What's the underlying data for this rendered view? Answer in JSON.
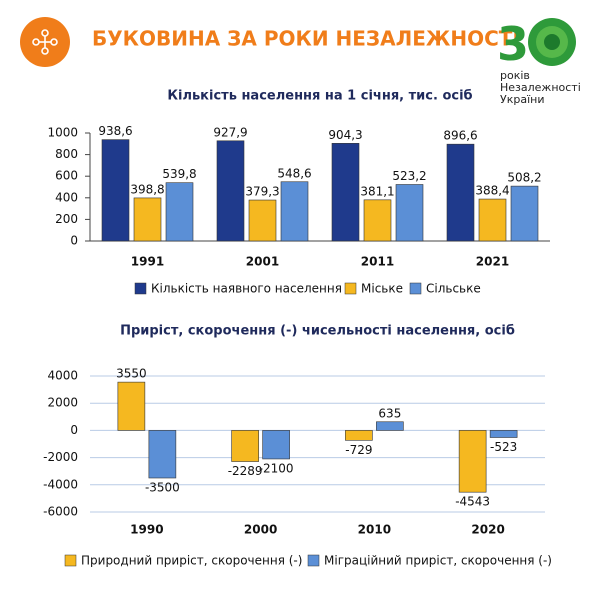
{
  "header": {
    "title": "БУКОВИНА ЗА РОКИ НЕЗАЛЕЖНОСТІ",
    "logo_digit": "3",
    "logo_lines": [
      "років",
      "Незалежності",
      "України"
    ]
  },
  "chart_data": [
    {
      "type": "bar",
      "title": "Кількість населення на 1 січня, тис. осіб",
      "categories": [
        "1991",
        "2001",
        "2011",
        "2021"
      ],
      "series": [
        {
          "name": "Кількість наявного населення",
          "color": "#1f3a8c",
          "values": [
            938.6,
            927.9,
            904.3,
            896.6
          ],
          "value_labels": [
            "938,6",
            "927,9",
            "904,3",
            "896,6"
          ]
        },
        {
          "name": "Міське",
          "color": "#f5b820",
          "values": [
            398.8,
            379.3,
            381.1,
            388.4
          ],
          "value_labels": [
            "398,8",
            "379,3",
            "381,1",
            "388,4"
          ]
        },
        {
          "name": "Сільське",
          "color": "#5b8fd6",
          "values": [
            539.8,
            548.6,
            523.2,
            508.2
          ],
          "value_labels": [
            "539,8",
            "548,6",
            "523,2",
            "508,2"
          ]
        }
      ],
      "ylim": [
        0,
        1000
      ],
      "yticks": [
        0,
        200,
        400,
        600,
        800,
        1000
      ],
      "grid": false,
      "legend": "bottom"
    },
    {
      "type": "bar",
      "title": "Приріст, скорочення (-) чисельності населення, осіб",
      "categories": [
        "1990",
        "2000",
        "2010",
        "2020"
      ],
      "series": [
        {
          "name": "Природний приріст, скорочення (-)",
          "color": "#f5b820",
          "values": [
            3550,
            -2289,
            -729,
            -4543
          ]
        },
        {
          "name": "Міграційний приріст, скорочення (-)",
          "color": "#5b8fd6",
          "values": [
            -3500,
            -2100,
            635,
            -523
          ]
        }
      ],
      "ylim": [
        -6000,
        4000
      ],
      "yticks": [
        -6000,
        -4000,
        -2000,
        0,
        2000,
        4000
      ],
      "grid": true,
      "legend": "bottom"
    }
  ]
}
